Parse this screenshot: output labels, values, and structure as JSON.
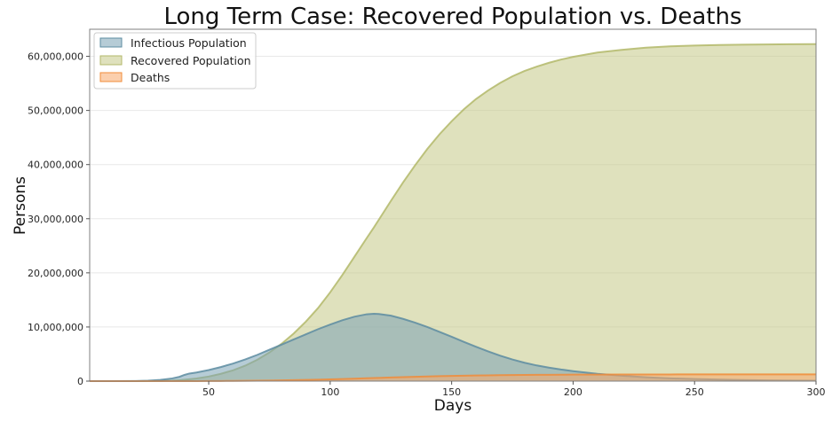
{
  "chart_data": {
    "type": "area",
    "title": "Long Term Case: Recovered Population vs. Deaths",
    "xlabel": "Days",
    "ylabel": "Persons",
    "xlim": [
      1,
      300
    ],
    "ylim": [
      0,
      65000000
    ],
    "x_ticks": [
      50,
      100,
      150,
      200,
      250,
      300
    ],
    "y_ticks": [
      0,
      10000000,
      20000000,
      30000000,
      40000000,
      50000000,
      60000000
    ],
    "x_tick_labels": [
      "50",
      "100",
      "150",
      "200",
      "250",
      "300"
    ],
    "y_tick_labels": [
      "0",
      "10,000,000",
      "20,000,000",
      "30,000,000",
      "40,000,000",
      "50,000,000",
      "60,000,000"
    ],
    "grid": "horizontal",
    "legend_position": "top-left",
    "x": [
      1,
      10,
      20,
      25,
      30,
      35,
      38,
      40,
      42,
      45,
      50,
      55,
      60,
      65,
      70,
      75,
      80,
      85,
      90,
      95,
      100,
      105,
      110,
      115,
      118,
      120,
      125,
      130,
      135,
      140,
      145,
      150,
      155,
      160,
      165,
      170,
      175,
      180,
      185,
      190,
      195,
      200,
      210,
      220,
      230,
      240,
      250,
      260,
      270,
      280,
      290,
      300
    ],
    "series": [
      {
        "name": "Infectious Population",
        "color": "#7aa3b5",
        "values": [
          0,
          5000,
          30000,
          90000,
          220000,
          500000,
          800000,
          1150000,
          1400000,
          1600000,
          2050000,
          2600000,
          3250000,
          4000000,
          4850000,
          5800000,
          6750000,
          7700000,
          8650000,
          9600000,
          10450000,
          11250000,
          11900000,
          12350000,
          12450000,
          12400000,
          12100000,
          11500000,
          10800000,
          10000000,
          9100000,
          8200000,
          7250000,
          6350000,
          5500000,
          4700000,
          4000000,
          3400000,
          2900000,
          2500000,
          2150000,
          1850000,
          1350000,
          1000000,
          720000,
          520000,
          380000,
          280000,
          200000,
          150000,
          110000,
          80000
        ]
      },
      {
        "name": "Recovered Population",
        "color": "#c4c987",
        "values": [
          0,
          1000,
          5000,
          15000,
          40000,
          100000,
          180000,
          260000,
          350000,
          500000,
          850000,
          1350000,
          2000000,
          2850000,
          3950000,
          5300000,
          6900000,
          8800000,
          11000000,
          13500000,
          16400000,
          19600000,
          23000000,
          26400000,
          28400000,
          29800000,
          33300000,
          36700000,
          39900000,
          42900000,
          45600000,
          48000000,
          50200000,
          52100000,
          53700000,
          55100000,
          56300000,
          57300000,
          58100000,
          58800000,
          59400000,
          59900000,
          60700000,
          61200000,
          61600000,
          61850000,
          62000000,
          62100000,
          62150000,
          62200000,
          62230000,
          62250000
        ]
      },
      {
        "name": "Deaths",
        "color": "#f7a869",
        "values": [
          0,
          20,
          100,
          300,
          800,
          2000,
          3600,
          5200,
          7000,
          10000,
          17000,
          27000,
          40000,
          57000,
          79000,
          106000,
          138000,
          176000,
          220000,
          270000,
          328000,
          392000,
          460000,
          528000,
          568000,
          596000,
          666000,
          734000,
          798000,
          858000,
          912000,
          960000,
          1004000,
          1042000,
          1074000,
          1102000,
          1126000,
          1146000,
          1162000,
          1176000,
          1188000,
          1198000,
          1214000,
          1224000,
          1232000,
          1237000,
          1240000,
          1242000,
          1243000,
          1244000,
          1244500,
          1245000
        ]
      }
    ]
  }
}
